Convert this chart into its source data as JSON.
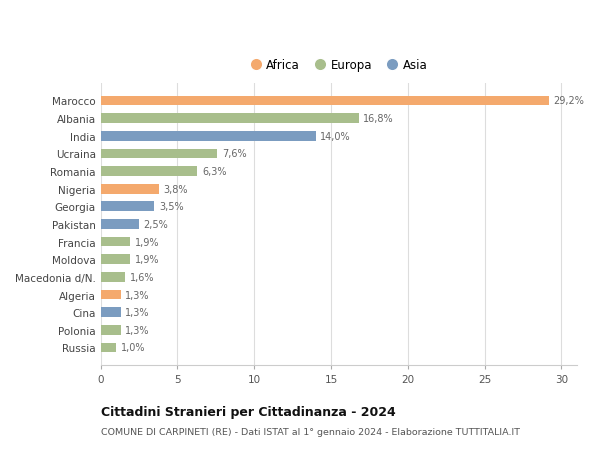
{
  "countries": [
    "Marocco",
    "Albania",
    "India",
    "Ucraina",
    "Romania",
    "Nigeria",
    "Georgia",
    "Pakistan",
    "Francia",
    "Moldova",
    "Macedonia d/N.",
    "Algeria",
    "Cina",
    "Polonia",
    "Russia"
  ],
  "values": [
    29.2,
    16.8,
    14.0,
    7.6,
    6.3,
    3.8,
    3.5,
    2.5,
    1.9,
    1.9,
    1.6,
    1.3,
    1.3,
    1.3,
    1.0
  ],
  "labels": [
    "29,2%",
    "16,8%",
    "14,0%",
    "7,6%",
    "6,3%",
    "3,8%",
    "3,5%",
    "2,5%",
    "1,9%",
    "1,9%",
    "1,6%",
    "1,3%",
    "1,3%",
    "1,3%",
    "1,0%"
  ],
  "continents": [
    "Africa",
    "Europa",
    "Asia",
    "Europa",
    "Europa",
    "Africa",
    "Asia",
    "Asia",
    "Europa",
    "Europa",
    "Europa",
    "Africa",
    "Asia",
    "Europa",
    "Europa"
  ],
  "colors": {
    "Africa": "#F4A96D",
    "Europa": "#A8BE8C",
    "Asia": "#7B9CC0"
  },
  "xlim": [
    0,
    31
  ],
  "xticks": [
    0,
    5,
    10,
    15,
    20,
    25,
    30
  ],
  "title": "Cittadini Stranieri per Cittadinanza - 2024",
  "subtitle": "COMUNE DI CARPINETI (RE) - Dati ISTAT al 1° gennaio 2024 - Elaborazione TUTTITALIA.IT",
  "background_color": "#ffffff",
  "grid_color": "#dddddd",
  "bar_height": 0.55
}
